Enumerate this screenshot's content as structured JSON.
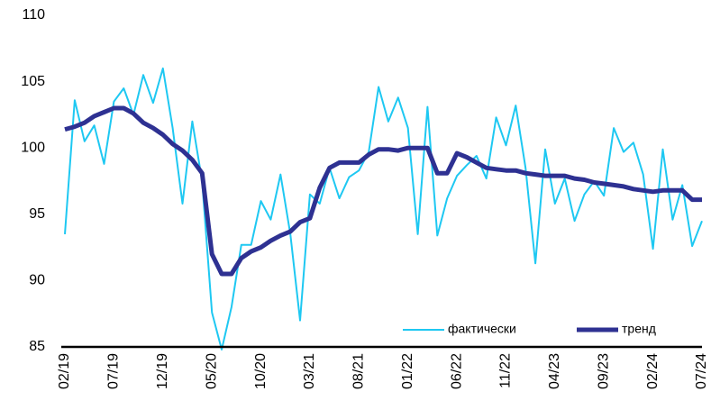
{
  "chart_data": {
    "type": "line",
    "categories": [
      "02/19",
      null,
      null,
      null,
      null,
      "07/19",
      null,
      null,
      null,
      null,
      "12/19",
      null,
      null,
      null,
      null,
      "05/20",
      null,
      null,
      null,
      null,
      "10/20",
      null,
      null,
      null,
      null,
      "03/21",
      null,
      null,
      null,
      null,
      "08/21",
      null,
      null,
      null,
      null,
      "01/22",
      null,
      null,
      null,
      null,
      "06/22",
      null,
      null,
      null,
      null,
      "11/22",
      null,
      null,
      null,
      null,
      "04/23",
      null,
      null,
      null,
      null,
      "09/23",
      null,
      null,
      null,
      null,
      "02/24",
      null,
      null,
      null,
      null,
      "07/24"
    ],
    "series": [
      {
        "name": "фактически",
        "color": "#1ec8f2",
        "values": [
          93.5,
          103.6,
          100.5,
          101.7,
          98.8,
          103.5,
          104.5,
          102.5,
          105.5,
          103.4,
          106,
          101.5,
          95.8,
          102,
          97.5,
          87.6,
          84.8,
          88,
          92.7,
          92.7,
          96,
          94.6,
          98,
          93.5,
          87,
          96.5,
          95.8,
          98.5,
          96.2,
          97.8,
          98.3,
          99.7,
          104.6,
          102,
          103.8,
          101.5,
          93.5,
          103.1,
          93.4,
          96.2,
          97.9,
          98.7,
          99.4,
          97.7,
          102.3,
          100.2,
          103.2,
          98.5,
          91.3,
          99.9,
          95.8,
          97.7,
          94.5,
          96.5,
          97.5,
          96.4,
          101.5,
          99.7,
          100.4,
          98,
          92.4,
          99.9,
          94.6,
          97.2,
          92.6,
          94.5
        ]
      },
      {
        "name": "тренд",
        "color": "#2e3192",
        "values": [
          101.4,
          101.6,
          101.9,
          102.4,
          102.7,
          103,
          103,
          102.6,
          101.9,
          101.5,
          101,
          100.3,
          99.8,
          99.1,
          98.1,
          92,
          90.5,
          90.5,
          91.7,
          92.2,
          92.5,
          93,
          93.4,
          93.7,
          94.4,
          94.7,
          97,
          98.5,
          98.9,
          98.9,
          98.9,
          99.5,
          99.9,
          99.9,
          99.8,
          100,
          100,
          100,
          98.1,
          98.1,
          99.6,
          99.3,
          98.9,
          98.5,
          98.4,
          98.3,
          98.3,
          98.1,
          98,
          97.9,
          97.9,
          97.9,
          97.7,
          97.6,
          97.4,
          97.3,
          97.2,
          97.1,
          96.9,
          96.8,
          96.7,
          96.8,
          96.8,
          96.8,
          96.1,
          96.1
        ]
      }
    ],
    "ylim": [
      85,
      110
    ],
    "yticks": [
      85,
      90,
      95,
      100,
      105,
      110
    ],
    "grid": false,
    "legend": "lower right"
  }
}
